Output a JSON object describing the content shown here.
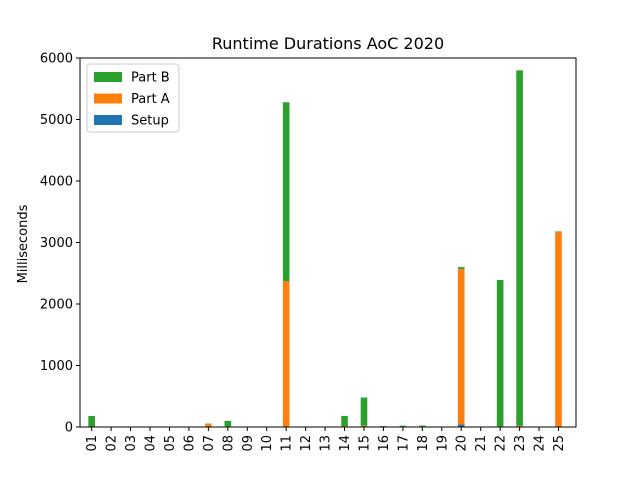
{
  "chart_data": {
    "type": "bar",
    "stacked": true,
    "title": "Runtime Durations AoC 2020",
    "xlabel": "",
    "ylabel": "Milliseconds",
    "ylim": [
      0,
      6000
    ],
    "yticks": [
      0,
      1000,
      2000,
      3000,
      4000,
      5000,
      6000
    ],
    "grid": false,
    "legend_position": "top-left",
    "categories": [
      "01",
      "02",
      "03",
      "04",
      "05",
      "06",
      "07",
      "08",
      "09",
      "10",
      "11",
      "12",
      "13",
      "14",
      "15",
      "16",
      "17",
      "18",
      "19",
      "20",
      "21",
      "22",
      "23",
      "24",
      "25"
    ],
    "series": [
      {
        "name": "Setup",
        "color": "#1f77b4",
        "values": [
          0,
          0,
          0,
          0,
          0,
          0,
          0,
          0,
          0,
          0,
          0,
          0,
          0,
          0,
          0,
          0,
          0,
          5,
          0,
          40,
          0,
          0,
          0,
          0,
          0
        ]
      },
      {
        "name": "Part A",
        "color": "#ff7f0e",
        "values": [
          5,
          2,
          2,
          2,
          3,
          2,
          45,
          10,
          3,
          3,
          2370,
          2,
          3,
          15,
          20,
          5,
          10,
          5,
          3,
          2530,
          3,
          10,
          20,
          3,
          3170
        ]
      },
      {
        "name": "Part B",
        "color": "#2ca02c",
        "values": [
          175,
          2,
          2,
          2,
          3,
          2,
          10,
          90,
          3,
          3,
          2910,
          2,
          3,
          165,
          460,
          10,
          12,
          15,
          3,
          30,
          3,
          2380,
          5780,
          3,
          10
        ]
      }
    ],
    "legend_order": [
      "Part B",
      "Part A",
      "Setup"
    ]
  }
}
